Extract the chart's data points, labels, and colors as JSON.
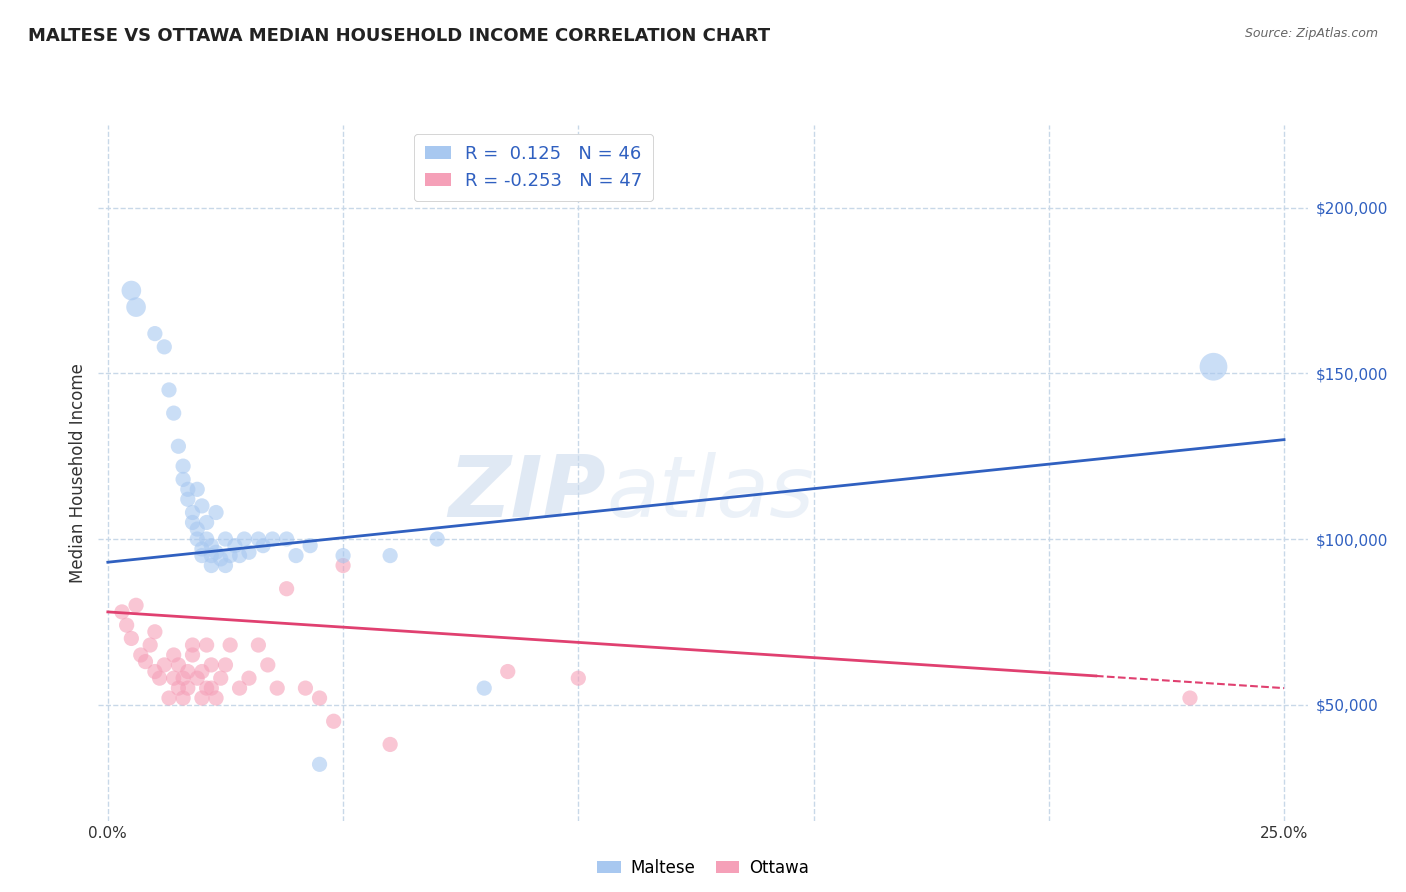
{
  "title": "MALTESE VS OTTAWA MEDIAN HOUSEHOLD INCOME CORRELATION CHART",
  "source": "Source: ZipAtlas.com",
  "ylabel": "Median Household Income",
  "xlabel": "",
  "xlim": [
    -0.002,
    0.255
  ],
  "ylim": [
    15000,
    225000
  ],
  "yticks": [
    50000,
    100000,
    150000,
    200000
  ],
  "ytick_labels": [
    "$50,000",
    "$100,000",
    "$150,000",
    "$200,000"
  ],
  "xticks": [
    0.0,
    0.05,
    0.1,
    0.15,
    0.2,
    0.25
  ],
  "xtick_labels": [
    "0.0%",
    "",
    "",
    "",
    "",
    "25.0%"
  ],
  "blue_color": "#a8c8f0",
  "pink_color": "#f5a0b8",
  "blue_line_color": "#3060c0",
  "pink_line_color": "#e04070",
  "background_color": "#ffffff",
  "grid_color": "#c8d8e8",
  "watermark_text": "ZIPatlas",
  "blue_trend_x0": 0.0,
  "blue_trend_y0": 93000,
  "blue_trend_x1": 0.25,
  "blue_trend_y1": 130000,
  "pink_trend_x0": 0.0,
  "pink_trend_y0": 78000,
  "pink_trend_x1": 0.25,
  "pink_trend_y1": 55000,
  "maltese_x": [
    0.005,
    0.006,
    0.01,
    0.012,
    0.013,
    0.014,
    0.015,
    0.016,
    0.016,
    0.017,
    0.017,
    0.018,
    0.018,
    0.019,
    0.019,
    0.019,
    0.02,
    0.02,
    0.02,
    0.021,
    0.021,
    0.022,
    0.022,
    0.022,
    0.023,
    0.023,
    0.024,
    0.025,
    0.025,
    0.026,
    0.027,
    0.028,
    0.029,
    0.03,
    0.032,
    0.033,
    0.035,
    0.038,
    0.04,
    0.043,
    0.045,
    0.05,
    0.06,
    0.07,
    0.08,
    0.235
  ],
  "maltese_y": [
    175000,
    170000,
    162000,
    158000,
    145000,
    138000,
    128000,
    122000,
    118000,
    115000,
    112000,
    108000,
    105000,
    103000,
    100000,
    115000,
    97000,
    95000,
    110000,
    105000,
    100000,
    98000,
    95000,
    92000,
    108000,
    96000,
    94000,
    100000,
    92000,
    95000,
    98000,
    95000,
    100000,
    96000,
    100000,
    98000,
    100000,
    100000,
    95000,
    98000,
    32000,
    95000,
    95000,
    100000,
    55000,
    152000
  ],
  "maltese_sizes": [
    200,
    200,
    120,
    120,
    120,
    120,
    120,
    120,
    120,
    120,
    120,
    120,
    120,
    120,
    120,
    120,
    120,
    120,
    120,
    120,
    120,
    120,
    120,
    120,
    120,
    120,
    120,
    120,
    120,
    120,
    120,
    120,
    120,
    120,
    120,
    120,
    120,
    120,
    120,
    120,
    120,
    120,
    120,
    120,
    120,
    400
  ],
  "ottawa_x": [
    0.003,
    0.004,
    0.005,
    0.006,
    0.007,
    0.008,
    0.009,
    0.01,
    0.01,
    0.011,
    0.012,
    0.013,
    0.014,
    0.014,
    0.015,
    0.015,
    0.016,
    0.016,
    0.017,
    0.017,
    0.018,
    0.018,
    0.019,
    0.02,
    0.02,
    0.021,
    0.021,
    0.022,
    0.022,
    0.023,
    0.024,
    0.025,
    0.026,
    0.028,
    0.03,
    0.032,
    0.034,
    0.036,
    0.038,
    0.042,
    0.045,
    0.048,
    0.05,
    0.06,
    0.085,
    0.1,
    0.23
  ],
  "ottawa_y": [
    78000,
    74000,
    70000,
    80000,
    65000,
    63000,
    68000,
    60000,
    72000,
    58000,
    62000,
    52000,
    58000,
    65000,
    62000,
    55000,
    58000,
    52000,
    60000,
    55000,
    65000,
    68000,
    58000,
    60000,
    52000,
    55000,
    68000,
    62000,
    55000,
    52000,
    58000,
    62000,
    68000,
    55000,
    58000,
    68000,
    62000,
    55000,
    85000,
    55000,
    52000,
    45000,
    92000,
    38000,
    60000,
    58000,
    52000
  ],
  "ottawa_sizes": [
    120,
    120,
    120,
    120,
    120,
    120,
    120,
    120,
    120,
    120,
    120,
    120,
    120,
    120,
    120,
    120,
    120,
    120,
    120,
    120,
    120,
    120,
    120,
    120,
    120,
    120,
    120,
    120,
    120,
    120,
    120,
    120,
    120,
    120,
    120,
    120,
    120,
    120,
    120,
    120,
    120,
    120,
    120,
    120,
    120,
    120,
    120
  ]
}
